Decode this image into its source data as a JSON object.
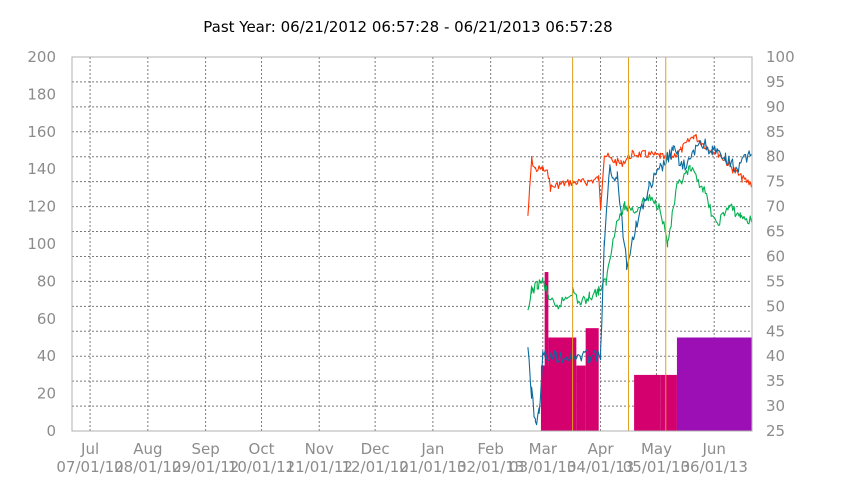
{
  "chart_data": {
    "type": "line",
    "title": "Past Year: 06/21/2012 06:57:28 - 06/21/2013 06:57:28",
    "y_left": {
      "min": 0,
      "max": 200,
      "ticks": [
        0,
        20,
        40,
        60,
        80,
        100,
        120,
        140,
        160,
        180,
        200
      ]
    },
    "y_right": {
      "min": 25,
      "max": 100,
      "ticks": [
        25,
        30,
        35,
        40,
        45,
        50,
        55,
        60,
        65,
        70,
        75,
        80,
        85,
        90,
        95,
        100
      ]
    },
    "x_range": [
      "2012-06-21",
      "2013-06-21"
    ],
    "x_ticks": [
      {
        "month": "Jul",
        "date": "07/01/12"
      },
      {
        "month": "Aug",
        "date": "08/01/12"
      },
      {
        "month": "Sep",
        "date": "09/01/12"
      },
      {
        "month": "Oct",
        "date": "10/01/12"
      },
      {
        "month": "Nov",
        "date": "11/01/12"
      },
      {
        "month": "Dec",
        "date": "12/01/12"
      },
      {
        "month": "Jan",
        "date": "01/01/13"
      },
      {
        "month": "Feb",
        "date": "02/01/13"
      },
      {
        "month": "Mar",
        "date": "03/01/13"
      },
      {
        "month": "Apr",
        "date": "04/01/13"
      },
      {
        "month": "May",
        "date": "05/01/13"
      },
      {
        "month": "Jun",
        "date": "06/01/13"
      }
    ],
    "grid": true,
    "bars": [
      {
        "start": "2013-02-28",
        "end": "2013-03-04",
        "value": 35,
        "color": "#d4006e"
      },
      {
        "start": "2013-03-02",
        "end": "2013-03-04",
        "value": 85,
        "color": "#d4006e"
      },
      {
        "start": "2013-03-04",
        "end": "2013-03-19",
        "value": 50,
        "color": "#d4006e"
      },
      {
        "start": "2013-03-19",
        "end": "2013-03-24",
        "value": 35,
        "color": "#d4006e"
      },
      {
        "start": "2013-03-24",
        "end": "2013-03-31",
        "value": 55,
        "color": "#d4006e"
      },
      {
        "start": "2013-04-19",
        "end": "2013-05-03",
        "value": 30,
        "color": "#d4006e"
      },
      {
        "start": "2013-05-03",
        "end": "2013-05-12",
        "value": 30,
        "color": "#d4006e"
      },
      {
        "start": "2013-05-12",
        "end": "2013-06-21",
        "value": 50,
        "color": "#9b0fb5"
      }
    ],
    "vlines": [
      {
        "date": "2013-03-17",
        "color": "#e0a020"
      },
      {
        "date": "2013-04-16",
        "color": "#e0a020"
      },
      {
        "date": "2013-05-06",
        "color": "#e0a020"
      }
    ],
    "series": [
      {
        "color": "#ff3300",
        "band": 8,
        "points": [
          [
            "2013-02-21",
            115
          ],
          [
            "2013-02-22",
            130
          ],
          [
            "2013-02-23",
            145
          ],
          [
            "2013-02-25",
            140
          ],
          [
            "2013-03-01",
            140
          ],
          [
            "2013-03-04",
            137
          ],
          [
            "2013-03-05",
            130
          ],
          [
            "2013-03-10",
            132
          ],
          [
            "2013-03-17",
            133
          ],
          [
            "2013-03-24",
            133
          ],
          [
            "2013-03-31",
            135
          ],
          [
            "2013-04-01",
            120
          ],
          [
            "2013-04-03",
            148
          ],
          [
            "2013-04-07",
            145
          ],
          [
            "2013-04-12",
            143
          ],
          [
            "2013-04-18",
            148
          ],
          [
            "2013-04-25",
            148
          ],
          [
            "2013-05-03",
            147
          ],
          [
            "2013-05-07",
            145
          ],
          [
            "2013-05-14",
            150
          ],
          [
            "2013-05-21",
            158
          ],
          [
            "2013-05-28",
            152
          ],
          [
            "2013-06-04",
            148
          ],
          [
            "2013-06-11",
            140
          ],
          [
            "2013-06-16",
            135
          ],
          [
            "2013-06-21",
            132
          ]
        ]
      },
      {
        "color": "#00b04f",
        "band": 10,
        "points": [
          [
            "2013-02-21",
            62
          ],
          [
            "2013-02-23",
            75
          ],
          [
            "2013-02-26",
            78
          ],
          [
            "2013-03-01",
            80
          ],
          [
            "2013-03-04",
            72
          ],
          [
            "2013-03-08",
            65
          ],
          [
            "2013-03-12",
            70
          ],
          [
            "2013-03-17",
            75
          ],
          [
            "2013-03-21",
            68
          ],
          [
            "2013-03-26",
            72
          ],
          [
            "2013-03-31",
            75
          ],
          [
            "2013-04-04",
            80
          ],
          [
            "2013-04-09",
            110
          ],
          [
            "2013-04-14",
            120
          ],
          [
            "2013-04-20",
            118
          ],
          [
            "2013-04-26",
            125
          ],
          [
            "2013-05-03",
            120
          ],
          [
            "2013-05-07",
            100
          ],
          [
            "2013-05-12",
            130
          ],
          [
            "2013-05-19",
            140
          ],
          [
            "2013-05-26",
            130
          ],
          [
            "2013-06-02",
            110
          ],
          [
            "2013-06-09",
            120
          ],
          [
            "2013-06-15",
            115
          ],
          [
            "2013-06-21",
            112
          ]
        ]
      },
      {
        "color": "#0a6aa0",
        "band": 14,
        "points": [
          [
            "2013-02-21",
            45
          ],
          [
            "2013-02-23",
            20
          ],
          [
            "2013-02-25",
            5
          ],
          [
            "2013-02-27",
            10
          ],
          [
            "2013-03-01",
            40
          ],
          [
            "2013-04-01",
            40
          ],
          [
            "2013-04-03",
            100
          ],
          [
            "2013-04-06",
            140
          ],
          [
            "2013-04-10",
            135
          ],
          [
            "2013-04-15",
            90
          ],
          [
            "2013-04-20",
            110
          ],
          [
            "2013-04-27",
            130
          ],
          [
            "2013-05-03",
            140
          ],
          [
            "2013-05-10",
            150
          ],
          [
            "2013-05-17",
            140
          ],
          [
            "2013-05-24",
            155
          ],
          [
            "2013-05-31",
            150
          ],
          [
            "2013-06-07",
            145
          ],
          [
            "2013-06-14",
            140
          ],
          [
            "2013-06-21",
            150
          ]
        ]
      }
    ]
  }
}
